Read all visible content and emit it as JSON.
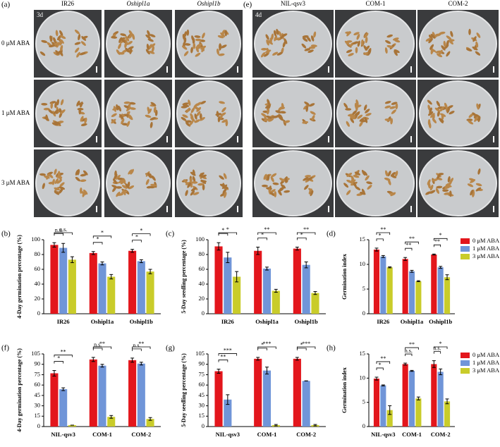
{
  "photo_panels": [
    {
      "label": "(a)",
      "day": "3d",
      "columns": [
        "IR26",
        "Oshipl1a",
        "Oshipl1b"
      ]
    },
    {
      "label": "(e)",
      "day": "4d",
      "columns": [
        "NIL-qsv3",
        "COM-1",
        "COM-2"
      ]
    }
  ],
  "row_labels": [
    "0 μM ABA",
    "1 μM ABA",
    "3 μM ABA"
  ],
  "chart_data": [
    {
      "type": "bar",
      "panel": "(b)",
      "ylabel": "4-Day germination percentage (%)",
      "categories": [
        "IR26",
        "Oshipl1a",
        "Oshipl1b"
      ],
      "ylim": [
        0,
        100
      ],
      "yticks": [
        0,
        20,
        40,
        60,
        80,
        100
      ],
      "legend": false,
      "series": [
        {
          "name": "0 μM ABA",
          "color": "#e3161c",
          "values": [
            93,
            82,
            85
          ],
          "errors": [
            3,
            2,
            2
          ]
        },
        {
          "name": "1 μM ABA",
          "color": "#7095d8",
          "values": [
            89,
            68,
            71
          ],
          "errors": [
            6,
            2,
            2
          ]
        },
        {
          "name": "3 μM ABA",
          "color": "#c9cc2a",
          "values": [
            73,
            50,
            57
          ],
          "errors": [
            4,
            3,
            3
          ]
        }
      ],
      "annotations": [
        {
          "text": "n.s.",
          "category": 0,
          "compare": 1
        },
        {
          "text": "n.s.",
          "category": 0,
          "compare": 2
        },
        {
          "text": "*",
          "category": 1,
          "compare": 1
        },
        {
          "text": "*",
          "category": 1,
          "compare": 2
        },
        {
          "text": "*",
          "category": 2,
          "compare": 1
        },
        {
          "text": "*",
          "category": 2,
          "compare": 2
        }
      ]
    },
    {
      "type": "bar",
      "panel": "(c)",
      "ylabel": "5-Day seedling percentage (%)",
      "categories": [
        "IR26",
        "Oshipl1a",
        "Oshipl1b"
      ],
      "ylim": [
        0,
        100
      ],
      "yticks": [
        0,
        20,
        40,
        60,
        80,
        100
      ],
      "legend": false,
      "series": [
        {
          "name": "0 μM ABA",
          "color": "#e3161c",
          "values": [
            91,
            85,
            88
          ],
          "errors": [
            5,
            5,
            2
          ]
        },
        {
          "name": "1 μM ABA",
          "color": "#7095d8",
          "values": [
            76,
            61,
            66
          ],
          "errors": [
            7,
            2,
            4
          ]
        },
        {
          "name": "3 μM ABA",
          "color": "#c9cc2a",
          "values": [
            50,
            31,
            28
          ],
          "errors": [
            7,
            2,
            2
          ]
        }
      ],
      "annotations": [
        {
          "text": "*",
          "category": 0,
          "compare": 1
        },
        {
          "text": "*",
          "category": 0,
          "compare": 2
        },
        {
          "text": "*",
          "category": 1,
          "compare": 1
        },
        {
          "text": "**",
          "category": 1,
          "compare": 2
        },
        {
          "text": "*",
          "category": 2,
          "compare": 1
        },
        {
          "text": "**",
          "category": 2,
          "compare": 2
        }
      ]
    },
    {
      "type": "bar",
      "panel": "(d)",
      "ylabel": "Germination index",
      "categories": [
        "IR26",
        "Oshipl1a",
        "Oshipl1b"
      ],
      "ylim": [
        0,
        15
      ],
      "yticks": [
        0,
        5,
        10,
        15
      ],
      "legend": true,
      "series": [
        {
          "name": "0 μM ABA",
          "color": "#e3161c",
          "values": [
            13.0,
            11.1,
            12.0
          ],
          "errors": [
            0.3,
            0.3,
            0.1
          ]
        },
        {
          "name": "1 μM ABA",
          "color": "#7095d8",
          "values": [
            11.6,
            8.6,
            9.4
          ],
          "errors": [
            0.2,
            0.2,
            0.2
          ]
        },
        {
          "name": "3 μM ABA",
          "color": "#c9cc2a",
          "values": [
            9.4,
            6.6,
            7.4
          ],
          "errors": [
            0.1,
            0.1,
            0.5
          ]
        }
      ],
      "annotations": [
        {
          "text": "*",
          "category": 0,
          "compare": 1
        },
        {
          "text": "**",
          "category": 0,
          "compare": 2
        },
        {
          "text": "**",
          "category": 1,
          "compare": 1
        },
        {
          "text": "**",
          "category": 1,
          "compare": 2
        },
        {
          "text": "**",
          "category": 2,
          "compare": 1
        },
        {
          "text": "*",
          "category": 2,
          "compare": 2
        }
      ]
    },
    {
      "type": "bar",
      "panel": "(f)",
      "ylabel": "4-Day germination percentage (%)",
      "categories": [
        "NIL-qsv3",
        "COM-1",
        "COM-2"
      ],
      "ylim": [
        0,
        105
      ],
      "yticks": [
        0,
        15,
        30,
        45,
        60,
        75,
        90,
        105
      ],
      "legend": false,
      "series": [
        {
          "name": "0 μM ABA",
          "color": "#e3161c",
          "values": [
            77,
            97,
            96
          ],
          "errors": [
            4,
            3,
            3
          ]
        },
        {
          "name": "1 μM ABA",
          "color": "#7095d8",
          "values": [
            54,
            88,
            91
          ],
          "errors": [
            2,
            2,
            2
          ]
        },
        {
          "name": "3 μM ABA",
          "color": "#c9cc2a",
          "values": [
            2,
            14,
            11
          ],
          "errors": [
            0,
            2,
            2
          ]
        }
      ],
      "annotations": [
        {
          "text": "*",
          "category": 0,
          "compare": 1
        },
        {
          "text": "**",
          "category": 0,
          "compare": 2
        },
        {
          "text": "n.s.",
          "category": 1,
          "compare": 1
        },
        {
          "text": "**",
          "category": 1,
          "compare": 2
        },
        {
          "text": "n.s.",
          "category": 2,
          "compare": 1
        },
        {
          "text": "**",
          "category": 2,
          "compare": 2
        }
      ]
    },
    {
      "type": "bar",
      "panel": "(g)",
      "ylabel": "5-Day seedling percentage (%)",
      "categories": [
        "NIL-qsv3",
        "COM-1",
        "COM-2"
      ],
      "ylim": [
        0,
        105
      ],
      "yticks": [
        0,
        15,
        30,
        45,
        60,
        75,
        90,
        105
      ],
      "legend": false,
      "series": [
        {
          "name": "0 μM ABA",
          "color": "#e3161c",
          "values": [
            80,
            98,
            98
          ],
          "errors": [
            3,
            2,
            2
          ]
        },
        {
          "name": "1 μM ABA",
          "color": "#7095d8",
          "values": [
            39,
            81,
            66
          ],
          "errors": [
            7,
            5,
            0
          ]
        },
        {
          "name": "3 μM ABA",
          "color": "#c9cc2a",
          "values": [
            0,
            2,
            2
          ],
          "errors": [
            0,
            1,
            1
          ]
        }
      ],
      "annotations": [
        {
          "text": "**",
          "category": 0,
          "compare": 1
        },
        {
          "text": "***",
          "category": 0,
          "compare": 2
        },
        {
          "text": "*",
          "category": 1,
          "compare": 1
        },
        {
          "text": "***",
          "category": 1,
          "compare": 2
        },
        {
          "text": "*",
          "category": 2,
          "compare": 1
        },
        {
          "text": "***",
          "category": 2,
          "compare": 2
        }
      ]
    },
    {
      "type": "bar",
      "panel": "(h)",
      "ylabel": "Germination index",
      "categories": [
        "NIL-qsv3",
        "COM-1",
        "COM-2"
      ],
      "ylim": [
        0,
        15
      ],
      "yticks": [
        0,
        5,
        10,
        15
      ],
      "legend": true,
      "series": [
        {
          "name": "0 μM ABA",
          "color": "#e3161c",
          "values": [
            9.9,
            12.9,
            12.9
          ],
          "errors": [
            0.3,
            0.2,
            0.7
          ]
        },
        {
          "name": "1 μM ABA",
          "color": "#7095d8",
          "values": [
            8.5,
            11.5,
            11.3
          ],
          "errors": [
            0.1,
            0.1,
            0.6
          ]
        },
        {
          "name": "3 μM ABA",
          "color": "#c9cc2a",
          "values": [
            3.4,
            5.8,
            5.2
          ],
          "errors": [
            0.9,
            0.3,
            0.5
          ]
        }
      ],
      "annotations": [
        {
          "text": "*",
          "category": 0,
          "compare": 1
        },
        {
          "text": "**",
          "category": 0,
          "compare": 2
        },
        {
          "text": "n.s.",
          "category": 1,
          "compare": 1
        },
        {
          "text": "**",
          "category": 1,
          "compare": 2
        },
        {
          "text": "n.s.",
          "category": 2,
          "compare": 1
        },
        {
          "text": "*",
          "category": 2,
          "compare": 2
        }
      ]
    }
  ]
}
